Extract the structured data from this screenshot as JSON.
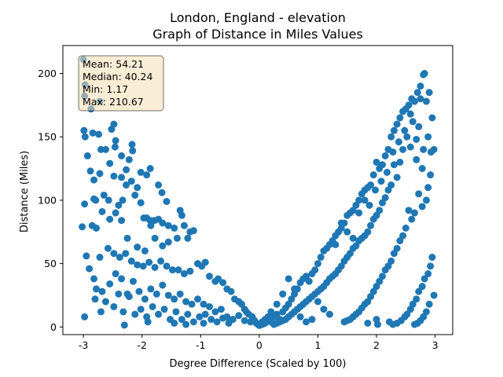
{
  "chart_data": {
    "type": "scatter",
    "title": "London, England - elevation",
    "subtitle": "Graph of Distance in Miles Values",
    "xlabel": "Degree Difference (Scaled by 100)",
    "ylabel": "Distance (Miles)",
    "xlim": [
      -3.35,
      3.3
    ],
    "ylim": [
      -6,
      222
    ],
    "xticks": [
      -3,
      -2,
      -1,
      0,
      1,
      2,
      3
    ],
    "yticks": [
      0,
      50,
      100,
      150,
      200
    ],
    "grid": false,
    "point_color": "#1f77b4",
    "stats_box": {
      "lines": [
        "Mean: 54.21",
        "Median: 40.24",
        "Min: 1.17",
        "Max: 210.67"
      ],
      "facecolor": "#f5deb3",
      "placement": "top-left"
    },
    "points": [
      [
        -3.0,
        211
      ],
      [
        -2.97,
        191
      ],
      [
        -2.98,
        182
      ],
      [
        -2.87,
        172
      ],
      [
        -2.72,
        178
      ],
      [
        -2.99,
        155
      ],
      [
        -2.97,
        150
      ],
      [
        -2.93,
        135
      ],
      [
        -2.84,
        153
      ],
      [
        -2.74,
        152
      ],
      [
        -2.7,
        140
      ],
      [
        -2.62,
        140
      ],
      [
        -2.55,
        129
      ],
      [
        -2.48,
        160
      ],
      [
        -2.52,
        156
      ],
      [
        -2.45,
        147
      ],
      [
        -2.46,
        142
      ],
      [
        -2.35,
        135
      ],
      [
        -2.27,
        124
      ],
      [
        -2.17,
        144
      ],
      [
        -2.16,
        139
      ],
      [
        -2.22,
        132
      ],
      [
        -2.02,
        122
      ],
      [
        -1.92,
        120
      ],
      [
        -1.86,
        125
      ],
      [
        -1.72,
        112
      ],
      [
        -1.66,
        106
      ],
      [
        -1.58,
        99
      ],
      [
        -2.88,
        123
      ],
      [
        -2.72,
        121
      ],
      [
        -2.82,
        116
      ],
      [
        -2.79,
        100
      ],
      [
        -2.82,
        101
      ],
      [
        -2.65,
        104
      ],
      [
        -2.57,
        100
      ],
      [
        -2.48,
        119
      ],
      [
        -2.35,
        118
      ],
      [
        -2.27,
        112
      ],
      [
        -2.33,
        100
      ],
      [
        -2.4,
        96
      ],
      [
        -2.12,
        104
      ],
      [
        -2.08,
        110
      ],
      [
        -2.18,
        115
      ],
      [
        -2.02,
        98
      ],
      [
        -1.97,
        86
      ],
      [
        -1.92,
        86
      ],
      [
        -1.86,
        84
      ],
      [
        -1.79,
        84
      ],
      [
        -1.72,
        85
      ],
      [
        -1.65,
        82
      ],
      [
        -1.55,
        80
      ],
      [
        -1.45,
        78
      ],
      [
        -1.35,
        92
      ],
      [
        -1.32,
        88
      ],
      [
        -1.28,
        80
      ],
      [
        -1.18,
        75
      ],
      [
        -1.12,
        76
      ],
      [
        -1.22,
        70
      ],
      [
        -1.4,
        70
      ],
      [
        -1.55,
        67
      ],
      [
        -1.65,
        64
      ],
      [
        -1.78,
        70
      ],
      [
        -1.85,
        80
      ],
      [
        -1.95,
        60
      ],
      [
        -2.08,
        63
      ],
      [
        -2.25,
        70
      ],
      [
        -2.35,
        84
      ],
      [
        -2.45,
        90
      ],
      [
        -2.55,
        85
      ],
      [
        -2.68,
        91
      ],
      [
        -2.78,
        78
      ],
      [
        -2.85,
        80
      ],
      [
        -3.02,
        79
      ],
      [
        -2.98,
        97
      ],
      [
        -2.72,
        55
      ],
      [
        -2.58,
        62
      ],
      [
        -2.48,
        58
      ],
      [
        -2.38,
        55
      ],
      [
        -2.28,
        58
      ],
      [
        -2.18,
        52
      ],
      [
        -2.08,
        49
      ],
      [
        -1.98,
        48
      ],
      [
        -1.88,
        51
      ],
      [
        -1.78,
        47
      ],
      [
        -1.68,
        52
      ],
      [
        -1.58,
        48
      ],
      [
        -1.48,
        45
      ],
      [
        -1.38,
        45
      ],
      [
        -1.28,
        42
      ],
      [
        -1.18,
        44
      ],
      [
        -1.05,
        50
      ],
      [
        -0.98,
        48
      ],
      [
        -0.92,
        51
      ],
      [
        -0.85,
        40
      ],
      [
        -0.75,
        36
      ],
      [
        -0.7,
        38
      ],
      [
        -0.62,
        35
      ],
      [
        -0.55,
        30
      ],
      [
        -0.48,
        28
      ],
      [
        -0.42,
        22
      ],
      [
        -0.35,
        20
      ],
      [
        -0.3,
        18
      ],
      [
        -0.25,
        14
      ],
      [
        -0.22,
        12
      ],
      [
        -0.18,
        10
      ],
      [
        -0.12,
        8
      ],
      [
        -0.08,
        5
      ],
      [
        -0.05,
        3
      ],
      [
        -0.02,
        2
      ],
      [
        0.0,
        1.2
      ],
      [
        -2.95,
        56
      ],
      [
        -2.9,
        46
      ],
      [
        -2.82,
        38
      ],
      [
        -2.78,
        30
      ],
      [
        -2.68,
        28
      ],
      [
        -2.55,
        34
      ],
      [
        -2.45,
        42
      ],
      [
        -2.35,
        38
      ],
      [
        -2.25,
        26
      ],
      [
        -2.15,
        36
      ],
      [
        -2.05,
        28
      ],
      [
        -1.95,
        22
      ],
      [
        -1.85,
        30
      ],
      [
        -1.75,
        26
      ],
      [
        -1.65,
        33
      ],
      [
        -1.55,
        25
      ],
      [
        -1.45,
        22
      ],
      [
        -1.35,
        26
      ],
      [
        -1.25,
        20
      ],
      [
        -1.15,
        18
      ],
      [
        -1.05,
        22
      ],
      [
        -0.95,
        18
      ],
      [
        -0.85,
        16
      ],
      [
        -0.75,
        12
      ],
      [
        -0.65,
        14
      ],
      [
        -0.55,
        8
      ],
      [
        -0.45,
        6
      ],
      [
        -0.35,
        9
      ],
      [
        -0.25,
        5
      ],
      [
        -0.15,
        4
      ],
      [
        -2.98,
        8
      ],
      [
        -2.8,
        22
      ],
      [
        -2.7,
        12
      ],
      [
        -2.62,
        20
      ],
      [
        -2.48,
        16
      ],
      [
        -2.4,
        26
      ],
      [
        -2.32,
        12
      ],
      [
        -2.22,
        24
      ],
      [
        -2.12,
        10
      ],
      [
        -2.02,
        14
      ],
      [
        -1.92,
        8
      ],
      [
        -1.82,
        16
      ],
      [
        -1.72,
        10
      ],
      [
        -1.62,
        14
      ],
      [
        -1.52,
        6
      ],
      [
        -1.42,
        12
      ],
      [
        -1.32,
        6
      ],
      [
        -1.22,
        10
      ],
      [
        -1.12,
        4
      ],
      [
        -1.02,
        8
      ],
      [
        -0.92,
        10
      ],
      [
        -0.82,
        6
      ],
      [
        -0.72,
        4
      ],
      [
        -0.62,
        7
      ],
      [
        -0.52,
        3
      ],
      [
        -2.3,
        1.5
      ],
      [
        -1.9,
        4
      ],
      [
        -1.45,
        3
      ],
      [
        -1.25,
        2
      ],
      [
        -0.95,
        3
      ],
      [
        0.05,
        2
      ],
      [
        0.1,
        3
      ],
      [
        0.15,
        5
      ],
      [
        0.2,
        4
      ],
      [
        0.25,
        8
      ],
      [
        0.3,
        10
      ],
      [
        0.35,
        6
      ],
      [
        0.4,
        12
      ],
      [
        0.45,
        15
      ],
      [
        0.5,
        18
      ],
      [
        0.55,
        22
      ],
      [
        0.6,
        26
      ],
      [
        0.65,
        30
      ],
      [
        0.7,
        35
      ],
      [
        0.75,
        38
      ],
      [
        0.8,
        40
      ],
      [
        0.85,
        36
      ],
      [
        0.9,
        42
      ],
      [
        0.95,
        45
      ],
      [
        1.0,
        50
      ],
      [
        1.05,
        55
      ],
      [
        1.1,
        60
      ],
      [
        1.15,
        62
      ],
      [
        1.2,
        65
      ],
      [
        1.25,
        68
      ],
      [
        1.3,
        72
      ],
      [
        1.35,
        75
      ],
      [
        1.4,
        78
      ],
      [
        1.45,
        82
      ],
      [
        1.5,
        88
      ],
      [
        1.55,
        90
      ],
      [
        1.6,
        92
      ],
      [
        1.65,
        96
      ],
      [
        1.7,
        100
      ],
      [
        1.75,
        105
      ],
      [
        1.8,
        108
      ],
      [
        1.85,
        110
      ],
      [
        1.9,
        112
      ],
      [
        1.95,
        120
      ],
      [
        2.0,
        130
      ],
      [
        2.05,
        125
      ],
      [
        2.1,
        128
      ],
      [
        2.15,
        135
      ],
      [
        2.2,
        140
      ],
      [
        2.25,
        150
      ],
      [
        2.3,
        155
      ],
      [
        2.35,
        160
      ],
      [
        2.4,
        165
      ],
      [
        2.45,
        170
      ],
      [
        2.5,
        172
      ],
      [
        2.55,
        175
      ],
      [
        2.6,
        180
      ],
      [
        2.65,
        178
      ],
      [
        2.7,
        185
      ],
      [
        2.75,
        190
      ],
      [
        2.8,
        199
      ],
      [
        2.82,
        200
      ],
      [
        2.75,
        180
      ],
      [
        2.85,
        178
      ],
      [
        2.9,
        185
      ],
      [
        2.95,
        165
      ],
      [
        2.98,
        140
      ],
      [
        2.93,
        138
      ],
      [
        2.88,
        150
      ],
      [
        2.8,
        140
      ],
      [
        2.72,
        158
      ],
      [
        2.68,
        148
      ],
      [
        2.62,
        162
      ],
      [
        2.58,
        168
      ],
      [
        2.52,
        150
      ],
      [
        2.45,
        140
      ],
      [
        2.4,
        130
      ],
      [
        2.35,
        118
      ],
      [
        2.3,
        128
      ],
      [
        2.25,
        112
      ],
      [
        2.2,
        108
      ],
      [
        2.15,
        102
      ],
      [
        2.1,
        98
      ],
      [
        2.05,
        92
      ],
      [
        2.0,
        88
      ],
      [
        1.95,
        85
      ],
      [
        1.9,
        80
      ],
      [
        1.85,
        75
      ],
      [
        1.8,
        72
      ],
      [
        1.75,
        70
      ],
      [
        1.7,
        68
      ],
      [
        1.65,
        64
      ],
      [
        1.6,
        62
      ],
      [
        1.55,
        58
      ],
      [
        1.5,
        55
      ],
      [
        1.45,
        52
      ],
      [
        1.4,
        48
      ],
      [
        1.35,
        45
      ],
      [
        1.3,
        42
      ],
      [
        1.25,
        40
      ],
      [
        1.2,
        38
      ],
      [
        1.15,
        35
      ],
      [
        1.1,
        32
      ],
      [
        1.05,
        30
      ],
      [
        1.0,
        28
      ],
      [
        0.95,
        26
      ],
      [
        0.9,
        24
      ],
      [
        0.85,
        22
      ],
      [
        0.8,
        20
      ],
      [
        0.75,
        18
      ],
      [
        0.7,
        16
      ],
      [
        0.65,
        14
      ],
      [
        0.6,
        12
      ],
      [
        0.55,
        10
      ],
      [
        0.5,
        8
      ],
      [
        0.45,
        6
      ],
      [
        0.4,
        5
      ],
      [
        0.35,
        4
      ],
      [
        0.3,
        3
      ],
      [
        0.25,
        2
      ],
      [
        2.92,
        120
      ],
      [
        2.88,
        110
      ],
      [
        2.85,
        100
      ],
      [
        2.78,
        95
      ],
      [
        2.72,
        105
      ],
      [
        2.65,
        90
      ],
      [
        2.6,
        85
      ],
      [
        2.55,
        92
      ],
      [
        2.5,
        78
      ],
      [
        2.45,
        72
      ],
      [
        2.4,
        68
      ],
      [
        2.35,
        62
      ],
      [
        2.3,
        58
      ],
      [
        2.25,
        52
      ],
      [
        2.2,
        48
      ],
      [
        2.15,
        45
      ],
      [
        2.1,
        40
      ],
      [
        2.05,
        36
      ],
      [
        2.0,
        32
      ],
      [
        1.95,
        28
      ],
      [
        1.9,
        24
      ],
      [
        1.85,
        20
      ],
      [
        1.8,
        18
      ],
      [
        1.75,
        15
      ],
      [
        1.7,
        12
      ],
      [
        1.65,
        10
      ],
      [
        1.6,
        8
      ],
      [
        1.55,
        6
      ],
      [
        1.5,
        5
      ],
      [
        1.45,
        4
      ],
      [
        2.95,
        55
      ],
      [
        2.92,
        48
      ],
      [
        2.88,
        42
      ],
      [
        2.82,
        38
      ],
      [
        2.78,
        32
      ],
      [
        2.72,
        28
      ],
      [
        2.68,
        22
      ],
      [
        2.62,
        18
      ],
      [
        2.58,
        14
      ],
      [
        2.52,
        10
      ],
      [
        2.48,
        8
      ],
      [
        2.42,
        5
      ],
      [
        2.35,
        3
      ],
      [
        2.28,
        2
      ],
      [
        2.22,
        4
      ],
      [
        2.98,
        25
      ],
      [
        2.9,
        18
      ],
      [
        2.85,
        12
      ],
      [
        2.8,
        8
      ],
      [
        2.75,
        5
      ],
      [
        2.7,
        3
      ],
      [
        2.65,
        2
      ],
      [
        2.0,
        6
      ],
      [
        2.02,
        2
      ],
      [
        1.85,
        3
      ],
      [
        1.2,
        10
      ],
      [
        1.1,
        14
      ],
      [
        1.0,
        20
      ],
      [
        0.9,
        6
      ],
      [
        0.8,
        4
      ],
      [
        0.7,
        8
      ],
      [
        0.6,
        30
      ],
      [
        0.5,
        38
      ],
      [
        0.4,
        26
      ],
      [
        0.3,
        18
      ],
      [
        0.2,
        12
      ],
      [
        0.15,
        8
      ],
      [
        0.1,
        6
      ],
      [
        0.05,
        4
      ],
      [
        1.3,
        65
      ],
      [
        1.4,
        82
      ],
      [
        1.5,
        75
      ],
      [
        1.6,
        70
      ],
      [
        1.7,
        90
      ],
      [
        1.8,
        100
      ],
      [
        1.88,
        96
      ],
      [
        1.98,
        108
      ],
      [
        2.08,
        115
      ],
      [
        2.18,
        122
      ],
      [
        2.28,
        138
      ],
      [
        2.38,
        146
      ],
      [
        2.48,
        155
      ],
      [
        2.58,
        142
      ],
      [
        2.68,
        132
      ],
      [
        2.78,
        125
      ]
    ]
  }
}
